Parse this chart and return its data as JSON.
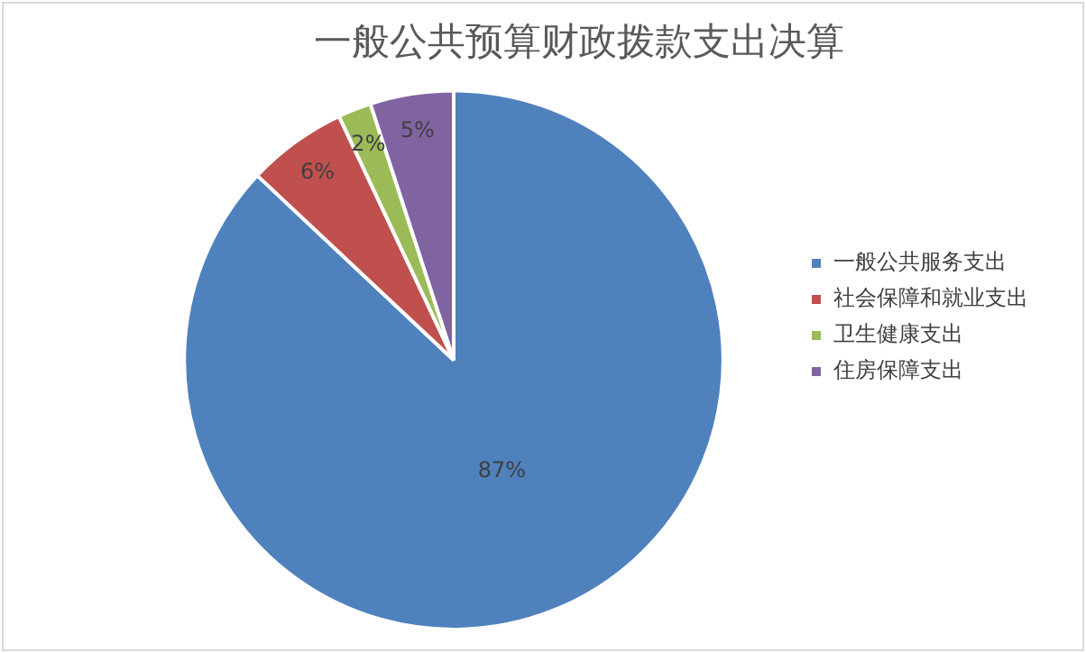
{
  "chart_data": {
    "type": "pie",
    "title": "一般公共预算财政拨款支出决算",
    "categories": [
      "一般公共服务支出",
      "社会保障和就业支出",
      "卫生健康支出",
      "住房保障支出"
    ],
    "values": [
      87,
      6,
      2,
      5
    ],
    "colors": [
      "#4f81bd",
      "#c0504d",
      "#9bbb59",
      "#8064a2"
    ],
    "value_labels": [
      "87%",
      "6%",
      "2%",
      "5%"
    ],
    "legend": "right"
  }
}
